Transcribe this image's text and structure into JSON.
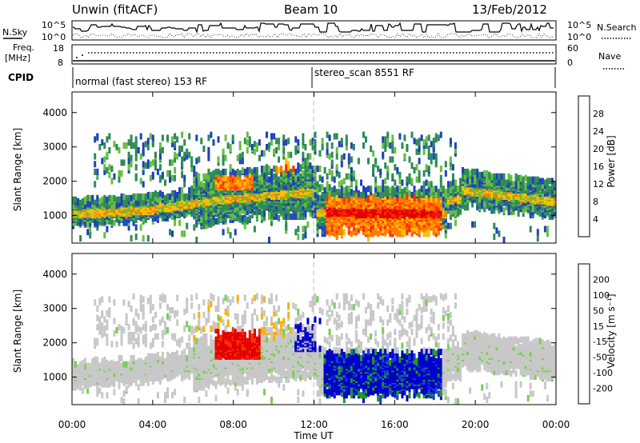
{
  "header": {
    "title": "Unwin (fitACF)",
    "beam": "Beam 10",
    "date": "13/Feb/2012"
  },
  "strips": {
    "nsky_label": "N.Sky",
    "nsky_ticks": [
      "10^5",
      "10^0"
    ],
    "nsearch_label": "N.Search",
    "nsearch_ticks": [
      "10^5",
      "10^0"
    ],
    "freq_label_1": "Freq.",
    "freq_label_2": "[MHz]",
    "freq_ticks": [
      "18",
      "8"
    ],
    "nave_label": "Nave",
    "nave_ticks": [
      "60",
      "0"
    ],
    "cpid_label": "CPID",
    "cpid_segments": [
      "normal (fast stereo) 153 RF",
      "stereo_scan 8551 RF"
    ]
  },
  "chart_data": [
    {
      "type": "heatmap",
      "name": "power",
      "ylabel": "Slant Range [km]",
      "yticks": [
        "1000",
        "2000",
        "3000",
        "4000"
      ],
      "ylim": [
        200,
        4600
      ],
      "xlim": [
        0,
        24
      ],
      "xticks": [
        0,
        4,
        8,
        12,
        16,
        20,
        24
      ],
      "colorbar": {
        "label": "Power [dB]",
        "ticks": [
          "4",
          "8",
          "12",
          "16",
          "20",
          "24",
          "28"
        ],
        "colors": [
          "#0000ff",
          "#2040c0",
          "#2e8b57",
          "#66c040",
          "#ffc000",
          "#ff7a00",
          "#ff3000",
          "#e00000"
        ]
      }
    },
    {
      "type": "heatmap",
      "name": "velocity",
      "ylabel": "Slant Range [km]",
      "yticks": [
        "1000",
        "2000",
        "3000",
        "4000"
      ],
      "ylim": [
        200,
        4600
      ],
      "xlim": [
        0,
        24
      ],
      "xticks": [
        0,
        4,
        8,
        12,
        16,
        20,
        24
      ],
      "colorbar": {
        "label": "Velocity [m s⁻¹]",
        "ticks": [
          "200",
          "100",
          "50",
          "15",
          "-15",
          "-50",
          "-100",
          "-200"
        ],
        "colors": [
          "#0000c8",
          "#1a3cdc",
          "#1e9b1e",
          "#78d050",
          "#c8c8c8",
          "#ffb000",
          "#ff7000",
          "#ff3000",
          "#e00000"
        ]
      }
    }
  ],
  "xaxis": {
    "ticks": [
      "00:00",
      "04:00",
      "08:00",
      "12:00",
      "16:00",
      "20:00",
      "00:00"
    ],
    "label": "Time UT"
  }
}
